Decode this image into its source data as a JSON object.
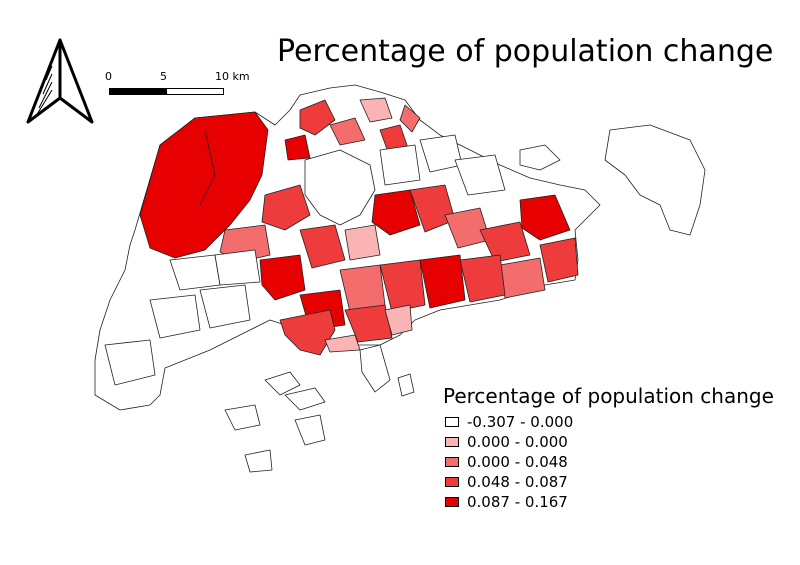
{
  "map": {
    "title": "Percentage of population change",
    "scale_bar": {
      "ticks": [
        "0",
        "5",
        "10 km"
      ]
    },
    "legend": {
      "title": "Percentage of population change",
      "classes": [
        {
          "label": "-0.307 - 0.000",
          "color": "#ffffff"
        },
        {
          "label": "0.000 - 0.000",
          "color": "#fbb4b4"
        },
        {
          "label": "0.000 - 0.048",
          "color": "#f46d6d"
        },
        {
          "label": "0.048 - 0.087",
          "color": "#ee3b3b"
        },
        {
          "label": "0.087 - 0.167",
          "color": "#e60000"
        }
      ]
    },
    "north_arrow": "north-arrow-icon"
  }
}
